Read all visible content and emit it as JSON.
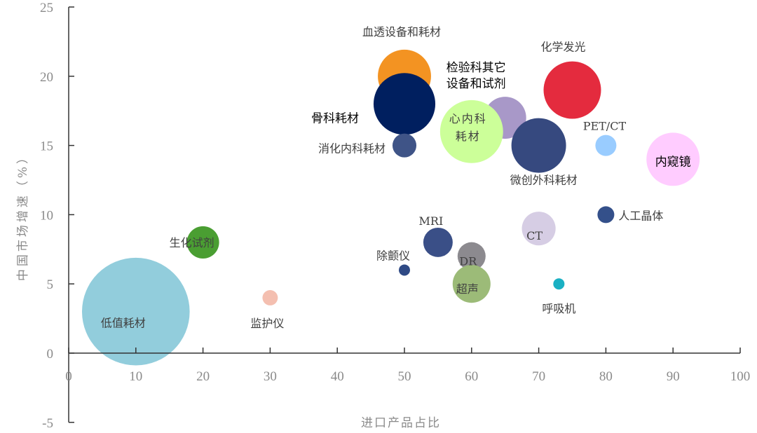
{
  "chart_data": {
    "type": "bubble",
    "title": "",
    "xlabel": "进口产品占比",
    "ylabel": "中国市场增速（%）",
    "xlim": [
      0,
      100
    ],
    "ylim": [
      -5,
      25
    ],
    "xticks": [
      0,
      10,
      20,
      30,
      40,
      50,
      60,
      70,
      80,
      90,
      100
    ],
    "yticks": [
      -5,
      0,
      5,
      10,
      15,
      20,
      25
    ],
    "grid": false,
    "legend": "none",
    "points": [
      {
        "label": "低值耗材",
        "x": 10,
        "y": 3,
        "size": 59,
        "color": "#92cddc"
      },
      {
        "label": "生化试剂",
        "x": 20,
        "y": 8,
        "size": 5.3,
        "color": "#4a9e32"
      },
      {
        "label": "监护仪",
        "x": 30,
        "y": 4,
        "size": 1.2,
        "color": "#f4bfb0"
      },
      {
        "label": "血透设备和耗材",
        "x": 50,
        "y": 20,
        "size": 14.4,
        "color": "#f39322"
      },
      {
        "label": "骨科耗材",
        "x": 50,
        "y": 18,
        "size": 19.4,
        "color": "#001f5f"
      },
      {
        "label": "消化内科耗材",
        "x": 50,
        "y": 15,
        "size": 2.9,
        "color": "#3f5487"
      },
      {
        "label": "除颤仪",
        "x": 50,
        "y": 6,
        "size": 0.64,
        "color": "#2f4a85"
      },
      {
        "label": "MRI",
        "x": 55,
        "y": 8,
        "size": 4.4,
        "color": "#3a4f87"
      },
      {
        "label": "DR",
        "x": 60,
        "y": 7,
        "size": 4.0,
        "color": "#8c8a8f"
      },
      {
        "label": "超声",
        "x": 60,
        "y": 5,
        "size": 7.3,
        "color": "#9cbb78"
      },
      {
        "label": "检验科其它设备和试剂",
        "lines": [
          "检验科其它",
          "设备和试剂"
        ],
        "x": 65,
        "y": 17,
        "size": 9.0,
        "color": "#a898c8"
      },
      {
        "label": "心内科耗材",
        "lines": [
          "心内科",
          "耗材"
        ],
        "x": 60,
        "y": 16,
        "size": 20.2,
        "color": "#ccff99"
      },
      {
        "label": "微创外科耗材",
        "x": 70,
        "y": 15,
        "size": 15.2,
        "color": "#36497f"
      },
      {
        "label": "CT",
        "x": 70,
        "y": 9,
        "size": 5.8,
        "color": "#d6cde4"
      },
      {
        "label": "化学发光",
        "x": 75,
        "y": 19,
        "size": 16.8,
        "color": "#e42b3e"
      },
      {
        "label": "PET/CT",
        "x": 80,
        "y": 15,
        "size": 2.25,
        "color": "#99ccff"
      },
      {
        "label": "人工晶体",
        "x": 80,
        "y": 10,
        "size": 1.44,
        "color": "#34508a"
      },
      {
        "label": "呼吸机",
        "x": 73,
        "y": 5,
        "size": 0.64,
        "color": "#1ab0c3"
      },
      {
        "label": "内窥镜",
        "x": 90,
        "y": 14,
        "size": 14.4,
        "color": "#ffccff"
      }
    ]
  }
}
